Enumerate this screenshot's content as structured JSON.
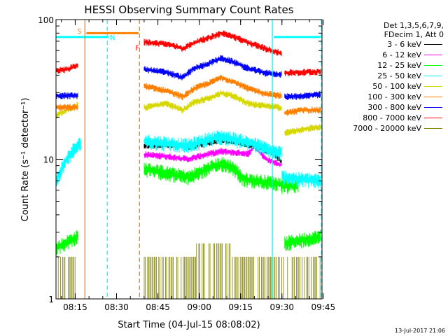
{
  "chart_data": {
    "type": "line",
    "title": "HESSI Observing Summary Count Rates",
    "xlabel": "Start Time (04-Jul-15 08:08:02)",
    "ylabel": "Count Rate (s⁻¹ detector⁻¹)",
    "x_unit": "minutes after 08:08:02",
    "xlim": [
      0,
      96.5
    ],
    "ylim": [
      1,
      100
    ],
    "yscale": "log",
    "xticks": [
      "08:15",
      "08:30",
      "08:45",
      "09:00",
      "09:15",
      "09:30",
      "09:45"
    ],
    "yticks": [
      "1",
      "10",
      "100"
    ],
    "legend_header": [
      "Det 1,3,5,6,7,9,",
      "FDecim 1, Att 0"
    ],
    "legend_placement": "right",
    "series": [
      {
        "name": "3 - 6 keV",
        "color": "#000000",
        "segments": [
          {
            "x": [
              32,
              40,
              48,
              56,
              60,
              64,
              72,
              78,
              80,
              82
            ],
            "y": [
              12.5,
              12.7,
              12.2,
              13.2,
              13.8,
              13.5,
              12.4,
              11.2,
              10.5,
              9.4
            ]
          }
        ]
      },
      {
        "name": "6 - 12 keV",
        "color": "#ff00ff",
        "segments": [
          {
            "x": [
              32,
              40,
              48,
              56,
              60,
              64,
              70,
              72,
              76,
              80,
              82
            ],
            "y": [
              10.8,
              10.5,
              10.0,
              11.0,
              11.4,
              11.2,
              11.0,
              12.5,
              10.0,
              9.4,
              9.1
            ]
          }
        ]
      },
      {
        "name": "12 - 25 keV",
        "color": "#00ff00",
        "segments": [
          {
            "x": [
              0,
              8
            ],
            "y": [
              2.3,
              2.8
            ]
          },
          {
            "x": [
              32,
              40,
              48,
              56,
              60,
              64,
              68,
              72,
              78,
              82
            ],
            "y": [
              8.5,
              8.0,
              7.4,
              8.7,
              9.3,
              8.8,
              7.2,
              7.0,
              6.8,
              6.6
            ]
          },
          {
            "x": [
              82,
              88
            ],
            "y": [
              6.4,
              6.5
            ]
          },
          {
            "x": [
              83,
              96
            ],
            "y": [
              2.5,
              2.8
            ]
          }
        ]
      },
      {
        "name": "25 - 50 keV",
        "color": "#00ffff",
        "segments": [
          {
            "x": [
              0,
              2,
              4,
              6,
              8,
              9
            ],
            "y": [
              7.0,
              8.5,
              10.0,
              11.5,
              12.5,
              13.0
            ]
          },
          {
            "x": [
              0,
              19
            ],
            "y": [
              75,
              75
            ]
          },
          {
            "x": [
              32,
              40,
              48,
              56,
              60,
              64,
              72,
              78,
              82
            ],
            "y": [
              13.5,
              13.0,
              12.5,
              14.0,
              14.5,
              14.0,
              12.8,
              11.5,
              11.0
            ]
          },
          {
            "x": [
              82,
              88,
              96
            ],
            "y": [
              7.5,
              7.2,
              7.0
            ]
          },
          {
            "x": [
              79,
              96
            ],
            "y": [
              75,
              75
            ]
          }
        ]
      },
      {
        "name": "50 - 100 keV",
        "color": "#d7d700",
        "segments": [
          {
            "x": [
              0,
              3,
              8
            ],
            "y": [
              20.5,
              22,
              24.5
            ]
          },
          {
            "x": [
              32,
              40,
              46,
              50,
              56,
              60,
              64,
              70,
              76,
              82
            ],
            "y": [
              23.5,
              25.0,
              22.5,
              25.5,
              27.5,
              30.0,
              28.5,
              25.0,
              24.0,
              23.5
            ]
          },
          {
            "x": [
              83,
              90,
              96
            ],
            "y": [
              15.5,
              16.5,
              17.0
            ]
          }
        ]
      },
      {
        "name": "100 - 300 keV",
        "color": "#ff7f00",
        "segments": [
          {
            "x": [
              0,
              8
            ],
            "y": [
              23.5,
              23.5
            ]
          },
          {
            "x": [
              32,
              40,
              46,
              50,
              56,
              60,
              64,
              70,
              76,
              82
            ],
            "y": [
              33.5,
              31.0,
              28.0,
              32.0,
              35.5,
              38.5,
              36.0,
              32.0,
              29.5,
              28.5
            ]
          },
          {
            "x": [
              83,
              90,
              96
            ],
            "y": [
              21.5,
              22.5,
              22.5
            ]
          }
        ]
      },
      {
        "name": "300 - 800 keV",
        "color": "#0000ff",
        "segments": [
          {
            "x": [
              0,
              8
            ],
            "y": [
              28.5,
              28.5
            ]
          },
          {
            "x": [
              32,
              40,
              46,
              50,
              56,
              60,
              64,
              70,
              76,
              82
            ],
            "y": [
              44.0,
              42.0,
              38.5,
              44.5,
              49.0,
              53.0,
              50.0,
              44.5,
              41.5,
              40.5
            ]
          },
          {
            "x": [
              83,
              90,
              96
            ],
            "y": [
              28.0,
              28.5,
              29.0
            ]
          }
        ]
      },
      {
        "name": "800 - 7000 keV",
        "color": "#ff0000",
        "segments": [
          {
            "x": [
              0,
              4,
              8
            ],
            "y": [
              43,
              44,
              47
            ]
          },
          {
            "x": [
              32,
              40,
              46,
              50,
              56,
              60,
              64,
              70,
              76,
              82
            ],
            "y": [
              69.0,
              67.0,
              62.0,
              68.0,
              75.0,
              80.0,
              76.0,
              68.0,
              62.0,
              57.0
            ]
          },
          {
            "x": [
              83,
              90,
              96
            ],
            "y": [
              41.5,
              42.0,
              42.5
            ]
          }
        ]
      },
      {
        "name": "7000 - 20000 keV",
        "color": "#7f7f00",
        "segments": [
          {
            "x": [
              0,
              8
            ],
            "y": [
              2.0,
              2.0
            ]
          },
          {
            "x": [
              32,
              51
            ],
            "y": [
              2.0,
              2.0
            ]
          },
          {
            "x": [
              51,
              64
            ],
            "y": [
              2.5,
              2.5
            ]
          },
          {
            "x": [
              64,
              83
            ],
            "y": [
              2.0,
              2.0
            ]
          },
          {
            "x": [
              84,
              96
            ],
            "y": [
              2.0,
              2.0
            ]
          }
        ]
      }
    ],
    "vlines": [
      {
        "x": 10.5,
        "color": "#ff7f00",
        "style": "solid"
      },
      {
        "x": 18.6,
        "color": "#00ffff",
        "style": "dashed"
      },
      {
        "x": 30.3,
        "color": "#ff7f00",
        "style": "dashed"
      },
      {
        "x": 78.5,
        "color": "#00ffff",
        "style": "solid"
      },
      {
        "x": 96.3,
        "color": "#00ffff",
        "style": "dashed"
      }
    ],
    "flag_bars": [
      {
        "x": [
          11,
          30
        ],
        "y": 80,
        "color": "#ff7f00"
      }
    ],
    "annotations": [
      {
        "text": "S",
        "x": 8.5,
        "y": 83,
        "color": "#ff7f00"
      },
      {
        "text": "N",
        "x": 20.5,
        "y": 75,
        "color": "#00ffff"
      },
      {
        "text": "F",
        "x": 29.5,
        "y": 63,
        "color": "#ff0000"
      }
    ]
  },
  "footer": {
    "timestamp": "13-Jul-2017 21:06"
  }
}
